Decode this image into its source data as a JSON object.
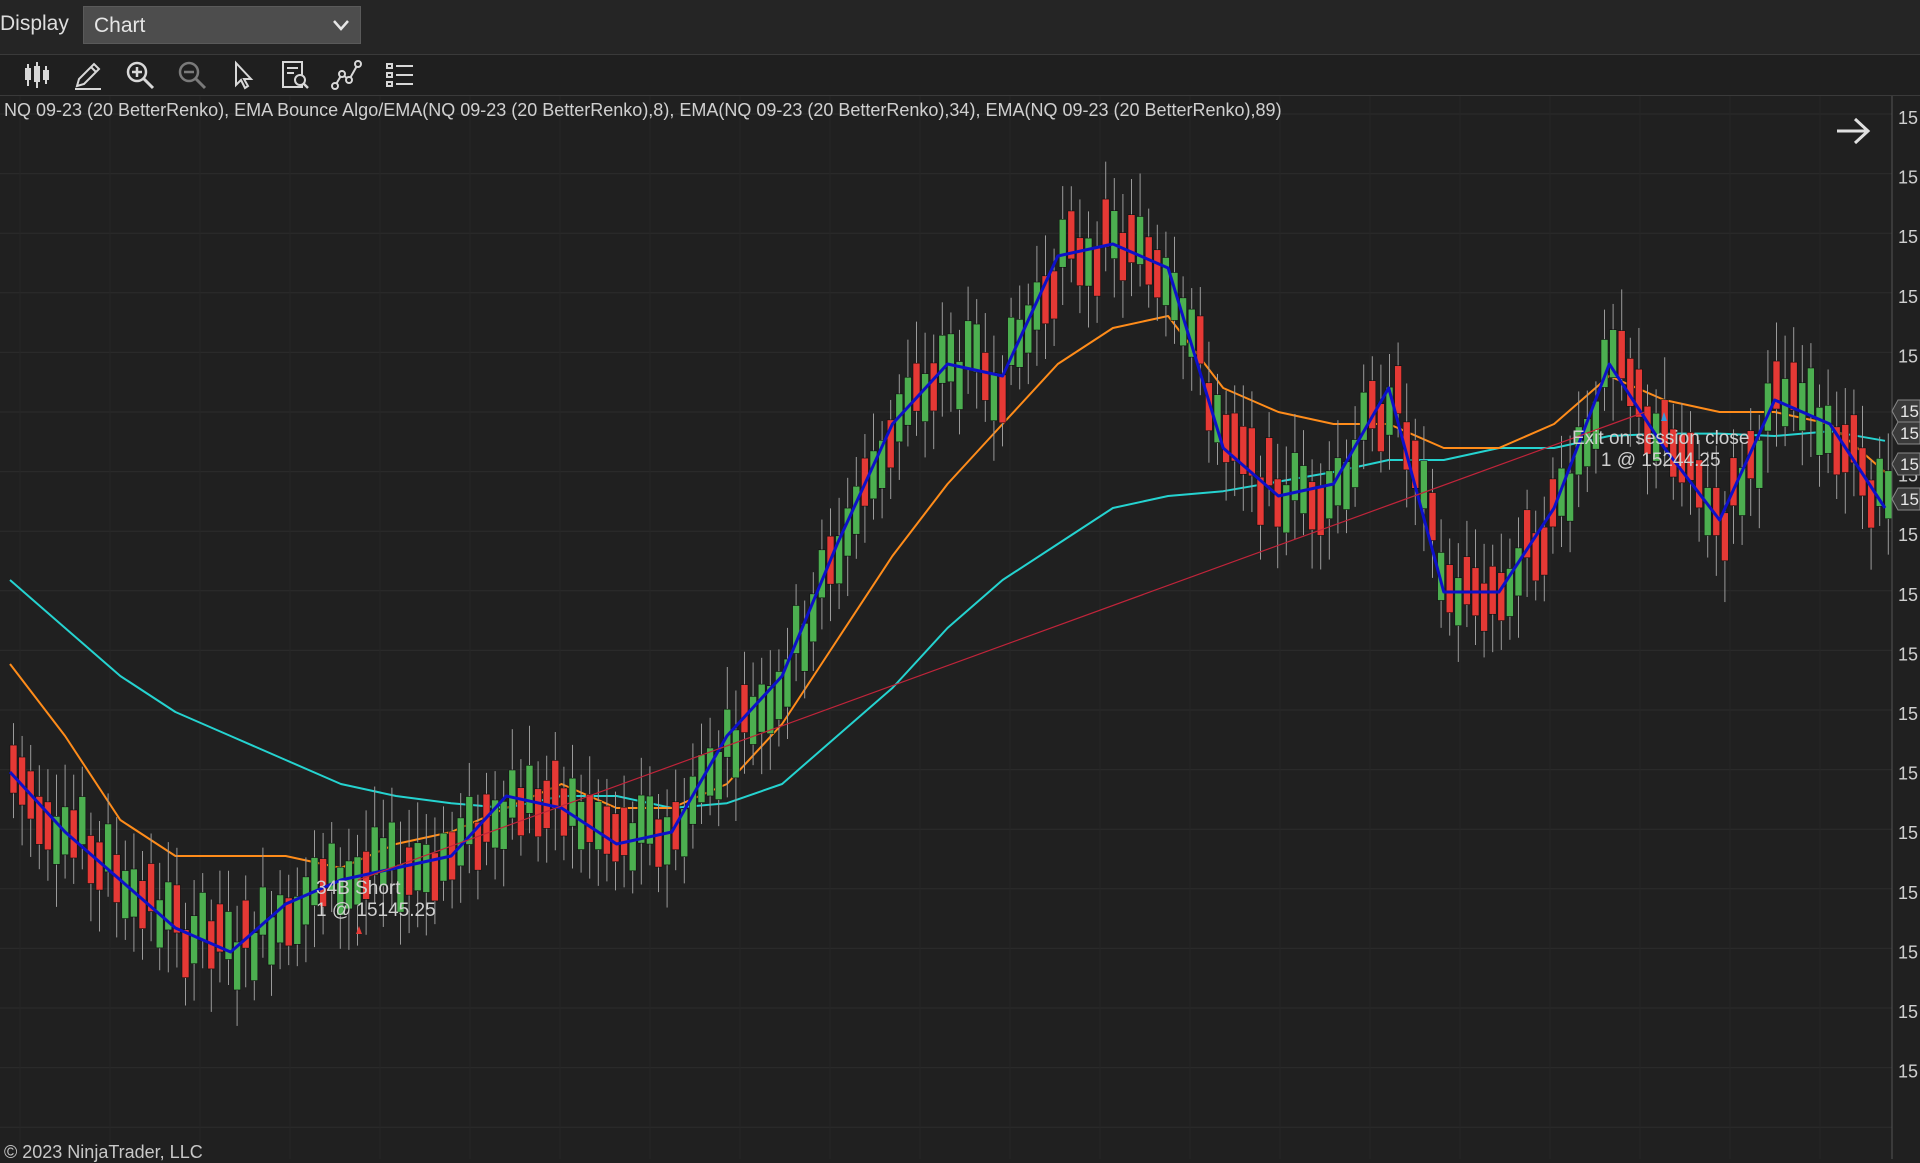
{
  "topbar": {
    "display_label": "Display",
    "display_select_value": "Chart"
  },
  "toolbar": {
    "icons": [
      "bar-type-icon",
      "pencil-icon",
      "zoom-in-icon",
      "zoom-out-icon",
      "pointer-icon",
      "data-box-icon",
      "chart-style-icon",
      "properties-list-icon"
    ]
  },
  "chart": {
    "header": "NQ 09-23 (20 BetterRenko), EMA Bounce Algo/EMA(NQ 09-23 (20 BetterRenko),8), EMA(NQ 09-23 (20 BetterRenko),34), EMA(NQ 09-23 (20 BetterRenko),89)",
    "copyright": "© 2023 NinjaTrader, LLC",
    "entry_label": {
      "line1": "34B Short",
      "line2": "1 @ 15145.25"
    },
    "exit_label": {
      "line1": "Exit on session close",
      "line2": "1 @ 15244.25"
    },
    "price_axis_label": "15",
    "colors": {
      "background": "#202020",
      "up_candle": "#4caf50",
      "down_candle": "#e53935",
      "ema8": "#0d10c8",
      "ema34": "#ff8c1a",
      "ema89": "#25d3d0",
      "trade_line": "#c0243a"
    }
  },
  "chart_data": {
    "type": "candlestick",
    "instrument": "NQ 09-23 (20 BetterRenko)",
    "series": [
      {
        "name": "EMA(NQ 09-23 (20 BetterRenko),8)",
        "color": "#0d10c8",
        "values": [
          15185,
          15160,
          15140,
          15120,
          15110,
          15130,
          15140,
          15145,
          15150,
          15175,
          15170,
          15155,
          15160,
          15200,
          15225,
          15280,
          15330,
          15355,
          15350,
          15400,
          15405,
          15395,
          15320,
          15300,
          15305,
          15345,
          15260,
          15260,
          15295,
          15355,
          15320,
          15290,
          15340,
          15330,
          15295
        ]
      },
      {
        "name": "EMA(NQ 09-23 (20 BetterRenko),34)",
        "color": "#ff8c1a",
        "values": [
          15230,
          15200,
          15165,
          15150,
          15150,
          15150,
          15145,
          15155,
          15160,
          15170,
          15180,
          15170,
          15170,
          15180,
          15205,
          15240,
          15275,
          15305,
          15330,
          15355,
          15370,
          15375,
          15345,
          15335,
          15330,
          15330,
          15320,
          15320,
          15330,
          15350,
          15340,
          15335,
          15335,
          15330,
          15310
        ]
      },
      {
        "name": "EMA(NQ 09-23 (20 BetterRenko),89)",
        "color": "#25d3d0",
        "values": [
          15265,
          15245,
          15225,
          15210,
          15200,
          15190,
          15180,
          15175,
          15172,
          15170,
          15175,
          15175,
          15170,
          15172,
          15180,
          15200,
          15220,
          15245,
          15265,
          15280,
          15295,
          15300,
          15302,
          15306,
          15310,
          15315,
          15315,
          15320,
          15320,
          15325,
          15326,
          15326,
          15325,
          15327,
          15323
        ]
      }
    ],
    "trades": [
      {
        "label": "34B Short",
        "quantity": 1,
        "price": 15145.25
      },
      {
        "label": "Exit on session close",
        "quantity": 1,
        "price": 15244.25
      }
    ]
  }
}
